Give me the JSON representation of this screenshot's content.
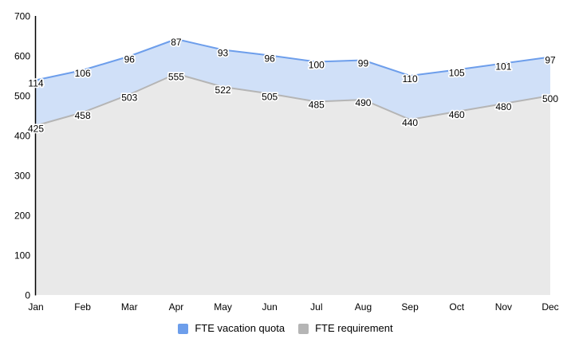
{
  "chart_data": {
    "type": "area",
    "stacked": true,
    "title": "",
    "xlabel": "",
    "ylabel": "",
    "categories": [
      "Jan",
      "Feb",
      "Mar",
      "Apr",
      "May",
      "Jun",
      "Jul",
      "Aug",
      "Sep",
      "Oct",
      "Nov",
      "Dec"
    ],
    "series": [
      {
        "name": "FTE vacation quota",
        "values": [
          114,
          106,
          96,
          87,
          93,
          96,
          100,
          99,
          110,
          105,
          101,
          97
        ],
        "line_color": "#6d9eeb",
        "fill_color": "#d0e0f8"
      },
      {
        "name": "FTE requirement",
        "values": [
          425,
          458,
          503,
          555,
          522,
          505,
          485,
          490,
          440,
          460,
          480,
          500
        ],
        "line_color": "#b5b5b5",
        "fill_color": "#e9e9e9"
      }
    ],
    "ylim": [
      0,
      700
    ],
    "yticks": [
      0,
      100,
      200,
      300,
      400,
      500,
      600,
      700
    ],
    "grid": false,
    "data_labels": true,
    "legend_position": "bottom",
    "axis_color": "#000000",
    "label_color": "#000000"
  }
}
